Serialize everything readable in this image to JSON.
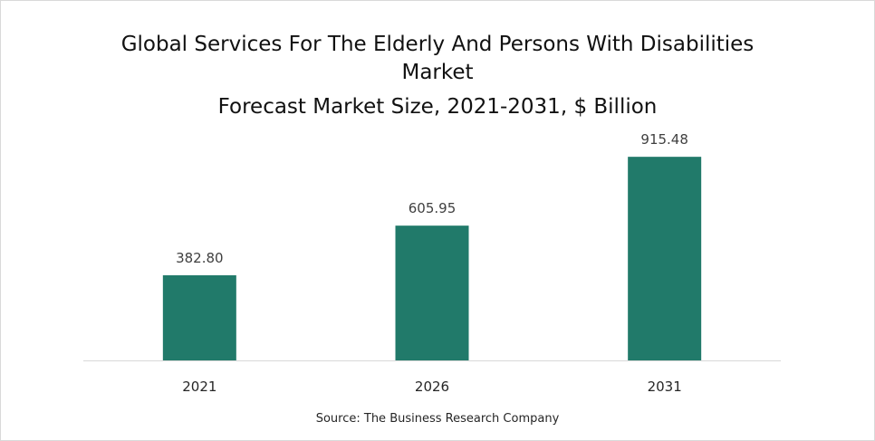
{
  "chart_data": {
    "type": "bar",
    "title_line1": "Global Services For The Elderly And Persons With Disabilities",
    "title_line2": "Market",
    "subtitle": "Forecast Market Size, 2021-2031, $ Billion",
    "categories": [
      "2021",
      "2026",
      "2031"
    ],
    "values": [
      382.8,
      605.95,
      915.48
    ],
    "value_labels": [
      "382.80",
      "605.95",
      "915.48"
    ],
    "ylim": [
      0,
      1000
    ],
    "grid": false,
    "legend": "none",
    "bar_color": "#217a6a",
    "source": "Source: The Business Research Company"
  }
}
